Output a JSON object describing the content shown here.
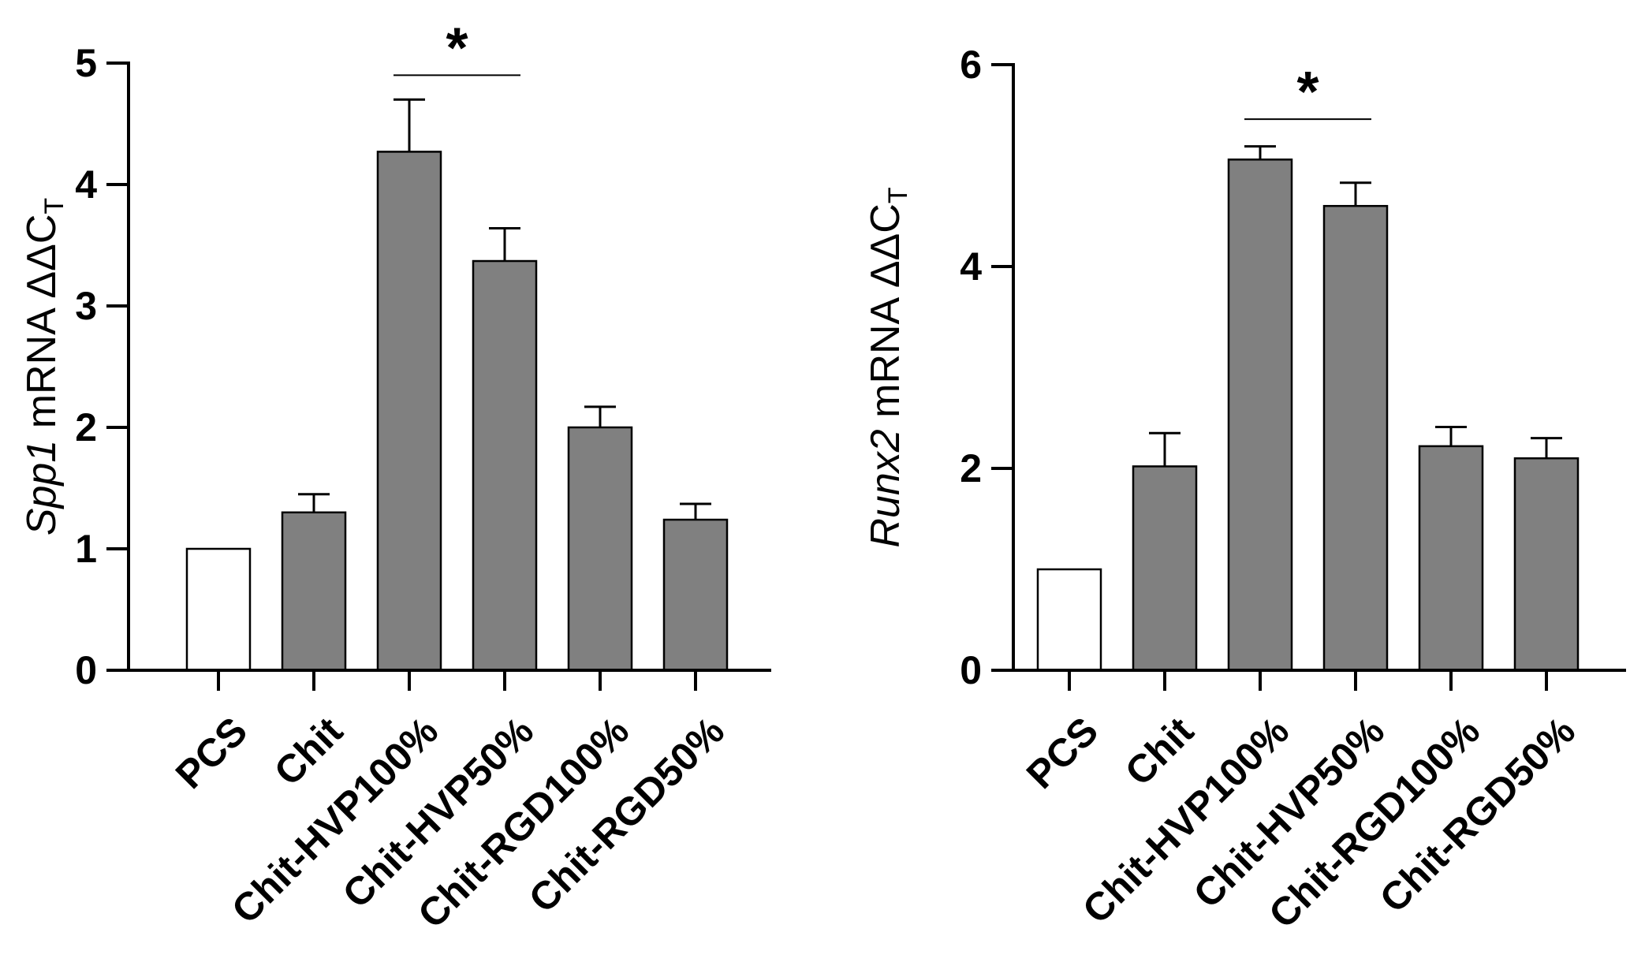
{
  "chart_data": [
    {
      "type": "bar",
      "title": "",
      "xlabel": "",
      "ylabel": {
        "gene": "Spp1",
        "text": "mRNA ΔΔC",
        "subscript": "T"
      },
      "ylim": [
        0,
        5
      ],
      "yticks": [
        0,
        1,
        2,
        3,
        4,
        5
      ],
      "categories": [
        "PCS",
        "Chit",
        "Chit-HVP100%",
        "Chit-HVP50%",
        "Chit-RGD100%",
        "Chit-RGD50%"
      ],
      "values": [
        1.0,
        1.3,
        4.27,
        3.37,
        2.0,
        1.24
      ],
      "errors": [
        0,
        0.15,
        0.43,
        0.27,
        0.17,
        0.13
      ],
      "fill_colors": [
        "#ffffff",
        "#808080",
        "#808080",
        "#808080",
        "#808080",
        "#808080"
      ],
      "significance": [
        {
          "from": 2,
          "to": 3,
          "label": "*",
          "y": 4.9
        }
      ]
    },
    {
      "type": "bar",
      "title": "",
      "xlabel": "",
      "ylabel": {
        "gene": "Runx2",
        "text": "mRNA ΔΔC",
        "subscript": "T"
      },
      "ylim": [
        0,
        6
      ],
      "yticks": [
        0,
        2,
        4,
        6
      ],
      "categories": [
        "PCS",
        "Chit",
        "Chit-HVP100%",
        "Chit-HVP50%",
        "Chit-RGD100%",
        "Chit-RGD50%"
      ],
      "values": [
        1.0,
        2.02,
        5.06,
        4.6,
        2.22,
        2.1
      ],
      "errors": [
        0,
        0.33,
        0.13,
        0.23,
        0.19,
        0.2
      ],
      "fill_colors": [
        "#ffffff",
        "#808080",
        "#808080",
        "#808080",
        "#808080",
        "#808080"
      ],
      "significance": [
        {
          "from": 2,
          "to": 3,
          "label": "*",
          "y": 5.46
        }
      ]
    }
  ]
}
